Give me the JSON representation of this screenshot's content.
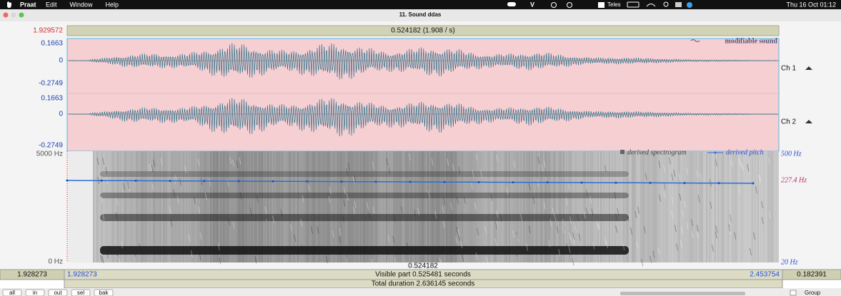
{
  "menu_bar": {
    "app": "Praat",
    "menus": [
      "Edit",
      "Window",
      "Help"
    ],
    "status": "Teles",
    "clock": "Thu 16 Oct 01:12"
  },
  "window": {
    "title": "11. Sound ddas"
  },
  "editor": {
    "top_left_time": "1.929572",
    "cursor_top": "0.524182 (1.908 / s)",
    "sound": {
      "label": "modifiable sound",
      "channels": [
        {
          "name": "Ch 1",
          "max": "0.1663",
          "zero": "0",
          "min": "-0.2749"
        },
        {
          "name": "Ch 2",
          "max": "0.1663",
          "zero": "0",
          "min": "-0.2749"
        }
      ]
    },
    "spectrogram": {
      "top": "5000 Hz",
      "bottom": "0 Hz",
      "legend": [
        "derived spectrogram",
        "derived pitch"
      ],
      "pitch_top": "500 Hz",
      "pitch_value": "227.4 Hz",
      "pitch_bottom": "20 Hz"
    },
    "cursor_bottom": "0.524182",
    "bottom_bar": {
      "left": "1.928273",
      "visible_start": "1.928273",
      "visible": "Visible part 0.525481 seconds",
      "visible_end": "2.453754",
      "right": "0.182391"
    },
    "total": "Total duration 2.636145 seconds",
    "buttons": [
      "all",
      "in",
      "out",
      "sel",
      "bak"
    ],
    "group": "Group"
  }
}
